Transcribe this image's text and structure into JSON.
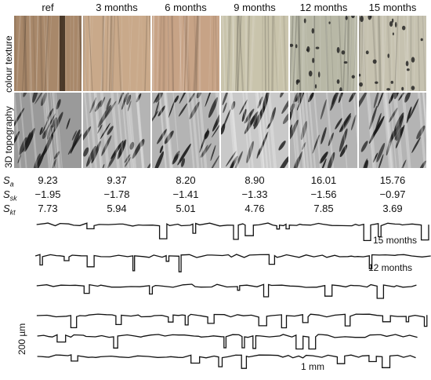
{
  "figure": {
    "columns": [
      "ref",
      "3 months",
      "6 months",
      "9 months",
      "12 months",
      "15 months"
    ],
    "row_labels": {
      "colour": "colour texture",
      "topo": "3D topography"
    },
    "metrics": [
      {
        "symbol": "S",
        "sub": "a",
        "values": [
          "9.23",
          "9.37",
          "8.20",
          "8.90",
          "16.01",
          "15.76"
        ]
      },
      {
        "symbol": "S",
        "sub": "sk",
        "values": [
          "−1.95",
          "−1.78",
          "−1.41",
          "−1.33",
          "−1.56",
          "−0.97"
        ]
      },
      {
        "symbol": "S",
        "sub": "kt",
        "values": [
          "7.73",
          "5.94",
          "5.01",
          "4.76",
          "7.85",
          "3.69"
        ]
      }
    ],
    "colour_swatches": [
      "#a8886a",
      "#c9a98a",
      "#c7a386",
      "#c9c4ac",
      "#b8b8a6",
      "#c6c2b0"
    ],
    "profiles": {
      "labels": [
        "15 months",
        "12 months"
      ],
      "scale_vertical": "200 µm",
      "scale_horizontal": "1 mm"
    }
  }
}
